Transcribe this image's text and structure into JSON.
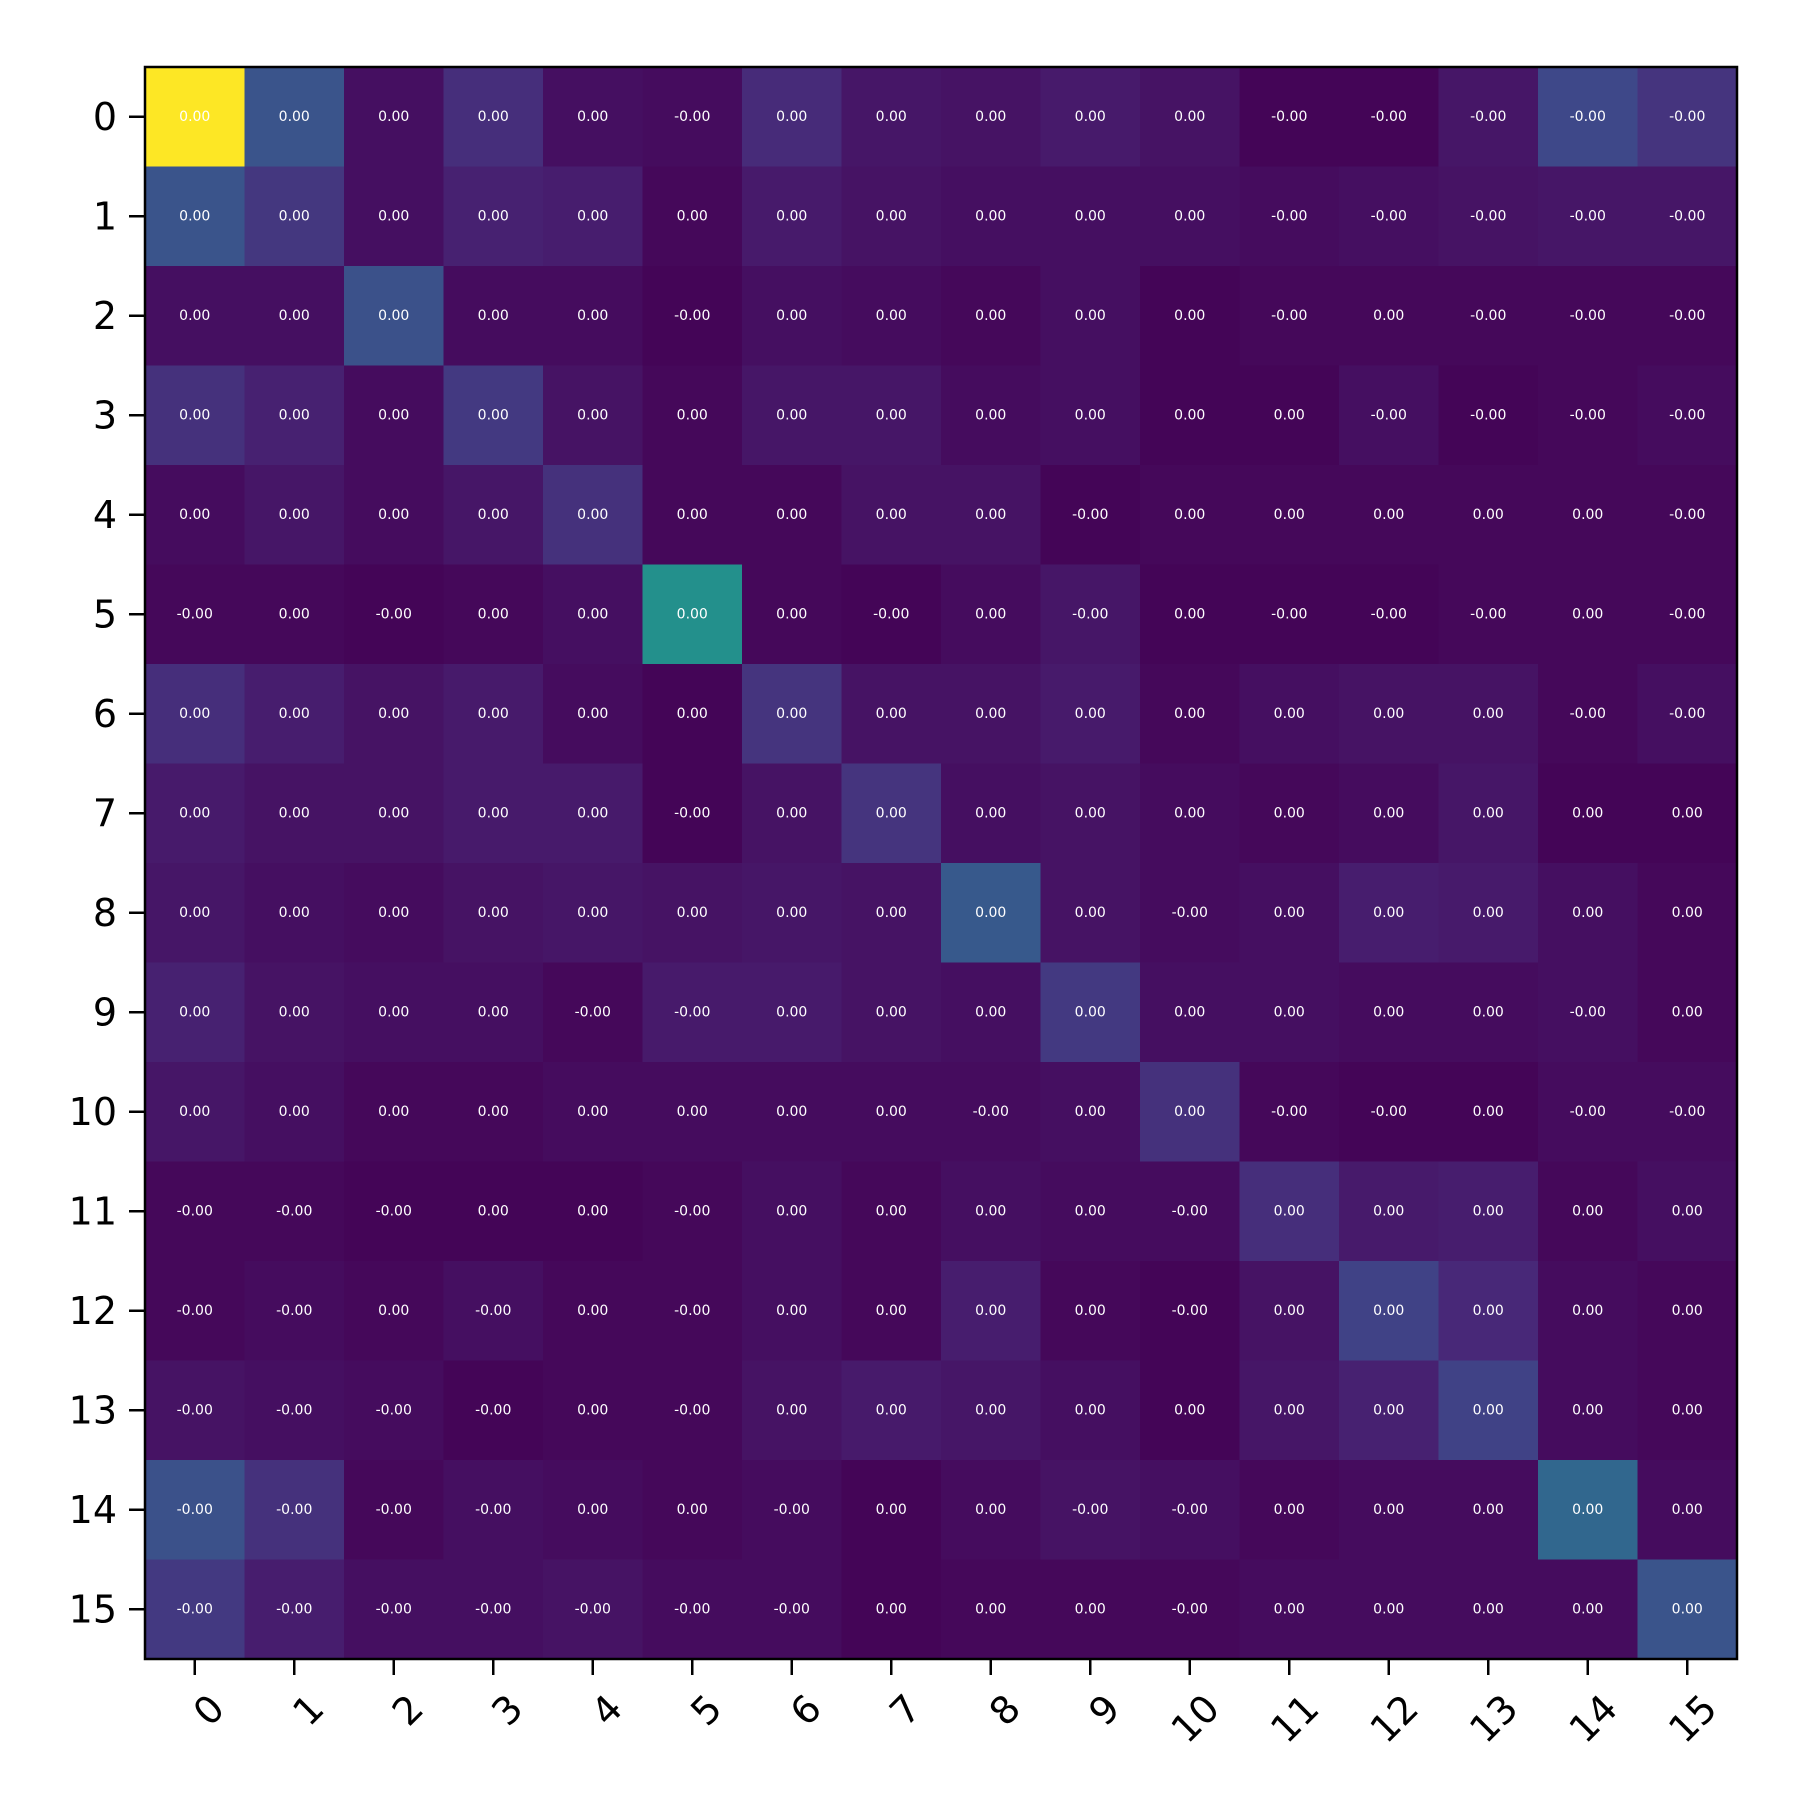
{
  "chart_data": {
    "type": "heatmap",
    "title": "",
    "xlabel": "",
    "ylabel": "",
    "x_categories": [
      "0",
      "1",
      "2",
      "3",
      "4",
      "5",
      "6",
      "7",
      "8",
      "9",
      "10",
      "11",
      "12",
      "13",
      "14",
      "15"
    ],
    "y_categories": [
      "0",
      "1",
      "2",
      "3",
      "4",
      "5",
      "6",
      "7",
      "8",
      "9",
      "10",
      "11",
      "12",
      "13",
      "14",
      "15"
    ],
    "colormap": "viridis",
    "grid": false,
    "legend": "none",
    "value_range": [
      0,
      1
    ],
    "intensity": [
      [
        1.0,
        0.26,
        0.04,
        0.13,
        0.04,
        0.03,
        0.12,
        0.06,
        0.05,
        0.07,
        0.05,
        0.01,
        0.01,
        0.06,
        0.22,
        0.15
      ],
      [
        0.26,
        0.16,
        0.04,
        0.09,
        0.08,
        0.02,
        0.07,
        0.05,
        0.04,
        0.04,
        0.04,
        0.03,
        0.04,
        0.05,
        0.06,
        0.06
      ],
      [
        0.04,
        0.04,
        0.25,
        0.03,
        0.03,
        0.01,
        0.04,
        0.03,
        0.02,
        0.04,
        0.01,
        0.02,
        0.02,
        0.02,
        0.02,
        0.02
      ],
      [
        0.14,
        0.09,
        0.03,
        0.17,
        0.05,
        0.02,
        0.06,
        0.06,
        0.03,
        0.04,
        0.01,
        0.01,
        0.04,
        0.01,
        0.02,
        0.03
      ],
      [
        0.03,
        0.06,
        0.03,
        0.06,
        0.14,
        0.02,
        0.02,
        0.05,
        0.05,
        0.01,
        0.02,
        0.02,
        0.02,
        0.02,
        0.02,
        0.02
      ],
      [
        0.02,
        0.02,
        0.01,
        0.02,
        0.04,
        0.5,
        0.02,
        0.01,
        0.03,
        0.06,
        0.01,
        0.01,
        0.01,
        0.02,
        0.02,
        0.02
      ],
      [
        0.13,
        0.08,
        0.05,
        0.07,
        0.03,
        0.01,
        0.15,
        0.05,
        0.05,
        0.07,
        0.02,
        0.04,
        0.05,
        0.05,
        0.02,
        0.04
      ],
      [
        0.07,
        0.05,
        0.05,
        0.07,
        0.07,
        0.01,
        0.05,
        0.15,
        0.04,
        0.05,
        0.03,
        0.02,
        0.03,
        0.06,
        0.01,
        0.01
      ],
      [
        0.06,
        0.04,
        0.03,
        0.05,
        0.06,
        0.05,
        0.06,
        0.05,
        0.28,
        0.05,
        0.03,
        0.04,
        0.08,
        0.07,
        0.04,
        0.02
      ],
      [
        0.09,
        0.05,
        0.04,
        0.04,
        0.02,
        0.07,
        0.07,
        0.05,
        0.04,
        0.17,
        0.04,
        0.04,
        0.03,
        0.03,
        0.04,
        0.02
      ],
      [
        0.06,
        0.04,
        0.02,
        0.02,
        0.03,
        0.03,
        0.03,
        0.03,
        0.03,
        0.04,
        0.14,
        0.02,
        0.01,
        0.01,
        0.03,
        0.03
      ],
      [
        0.02,
        0.02,
        0.01,
        0.01,
        0.01,
        0.02,
        0.04,
        0.02,
        0.04,
        0.03,
        0.03,
        0.13,
        0.07,
        0.08,
        0.02,
        0.04
      ],
      [
        0.02,
        0.03,
        0.02,
        0.04,
        0.02,
        0.02,
        0.04,
        0.02,
        0.08,
        0.02,
        0.01,
        0.05,
        0.2,
        0.11,
        0.03,
        0.02
      ],
      [
        0.05,
        0.04,
        0.03,
        0.01,
        0.02,
        0.02,
        0.05,
        0.07,
        0.06,
        0.04,
        0.01,
        0.06,
        0.09,
        0.2,
        0.03,
        0.02
      ],
      [
        0.25,
        0.14,
        0.02,
        0.04,
        0.03,
        0.02,
        0.03,
        0.01,
        0.03,
        0.05,
        0.04,
        0.02,
        0.03,
        0.03,
        0.33,
        0.03
      ],
      [
        0.17,
        0.08,
        0.04,
        0.04,
        0.05,
        0.03,
        0.03,
        0.01,
        0.02,
        0.02,
        0.02,
        0.03,
        0.03,
        0.03,
        0.03,
        0.26
      ]
    ],
    "labels": [
      [
        "0.00",
        "0.00",
        "0.00",
        "0.00",
        "0.00",
        "-0.00",
        "0.00",
        "0.00",
        "0.00",
        "0.00",
        "0.00",
        "-0.00",
        "-0.00",
        "-0.00",
        "-0.00",
        "-0.00"
      ],
      [
        "0.00",
        "0.00",
        "0.00",
        "0.00",
        "0.00",
        "0.00",
        "0.00",
        "0.00",
        "0.00",
        "0.00",
        "0.00",
        "-0.00",
        "-0.00",
        "-0.00",
        "-0.00",
        "-0.00"
      ],
      [
        "0.00",
        "0.00",
        "0.00",
        "0.00",
        "0.00",
        "-0.00",
        "0.00",
        "0.00",
        "0.00",
        "0.00",
        "0.00",
        "-0.00",
        "0.00",
        "-0.00",
        "-0.00",
        "-0.00"
      ],
      [
        "0.00",
        "0.00",
        "0.00",
        "0.00",
        "0.00",
        "0.00",
        "0.00",
        "0.00",
        "0.00",
        "0.00",
        "0.00",
        "0.00",
        "-0.00",
        "-0.00",
        "-0.00",
        "-0.00"
      ],
      [
        "0.00",
        "0.00",
        "0.00",
        "0.00",
        "0.00",
        "0.00",
        "0.00",
        "0.00",
        "0.00",
        "-0.00",
        "0.00",
        "0.00",
        "0.00",
        "0.00",
        "0.00",
        "-0.00"
      ],
      [
        "-0.00",
        "0.00",
        "-0.00",
        "0.00",
        "0.00",
        "0.00",
        "0.00",
        "-0.00",
        "0.00",
        "-0.00",
        "0.00",
        "-0.00",
        "-0.00",
        "-0.00",
        "0.00",
        "-0.00"
      ],
      [
        "0.00",
        "0.00",
        "0.00",
        "0.00",
        "0.00",
        "0.00",
        "0.00",
        "0.00",
        "0.00",
        "0.00",
        "0.00",
        "0.00",
        "0.00",
        "0.00",
        "-0.00",
        "-0.00"
      ],
      [
        "0.00",
        "0.00",
        "0.00",
        "0.00",
        "0.00",
        "-0.00",
        "0.00",
        "0.00",
        "0.00",
        "0.00",
        "0.00",
        "0.00",
        "0.00",
        "0.00",
        "0.00",
        "0.00"
      ],
      [
        "0.00",
        "0.00",
        "0.00",
        "0.00",
        "0.00",
        "0.00",
        "0.00",
        "0.00",
        "0.00",
        "0.00",
        "-0.00",
        "0.00",
        "0.00",
        "0.00",
        "0.00",
        "0.00"
      ],
      [
        "0.00",
        "0.00",
        "0.00",
        "0.00",
        "-0.00",
        "-0.00",
        "0.00",
        "0.00",
        "0.00",
        "0.00",
        "0.00",
        "0.00",
        "0.00",
        "0.00",
        "-0.00",
        "0.00"
      ],
      [
        "0.00",
        "0.00",
        "0.00",
        "0.00",
        "0.00",
        "0.00",
        "0.00",
        "0.00",
        "-0.00",
        "0.00",
        "0.00",
        "-0.00",
        "-0.00",
        "0.00",
        "-0.00",
        "-0.00"
      ],
      [
        "-0.00",
        "-0.00",
        "-0.00",
        "0.00",
        "0.00",
        "-0.00",
        "0.00",
        "0.00",
        "0.00",
        "0.00",
        "-0.00",
        "0.00",
        "0.00",
        "0.00",
        "0.00",
        "0.00"
      ],
      [
        "-0.00",
        "-0.00",
        "0.00",
        "-0.00",
        "0.00",
        "-0.00",
        "0.00",
        "0.00",
        "0.00",
        "0.00",
        "-0.00",
        "0.00",
        "0.00",
        "0.00",
        "0.00",
        "0.00"
      ],
      [
        "-0.00",
        "-0.00",
        "-0.00",
        "-0.00",
        "0.00",
        "-0.00",
        "0.00",
        "0.00",
        "0.00",
        "0.00",
        "0.00",
        "0.00",
        "0.00",
        "0.00",
        "0.00",
        "0.00"
      ],
      [
        "-0.00",
        "-0.00",
        "-0.00",
        "-0.00",
        "0.00",
        "0.00",
        "-0.00",
        "0.00",
        "0.00",
        "-0.00",
        "-0.00",
        "0.00",
        "0.00",
        "0.00",
        "0.00",
        "0.00"
      ],
      [
        "-0.00",
        "-0.00",
        "-0.00",
        "-0.00",
        "-0.00",
        "-0.00",
        "-0.00",
        "0.00",
        "0.00",
        "0.00",
        "-0.00",
        "0.00",
        "0.00",
        "0.00",
        "0.00",
        "0.00"
      ]
    ]
  },
  "colors": {
    "viridis_stops": [
      "#440154",
      "#482878",
      "#3e4989",
      "#31688e",
      "#26828e",
      "#1f9e89",
      "#35b779",
      "#6ece58",
      "#b5de2b",
      "#fde725"
    ],
    "axis": "#000000",
    "cell_text": "#ffffff",
    "background": "#ffffff"
  }
}
